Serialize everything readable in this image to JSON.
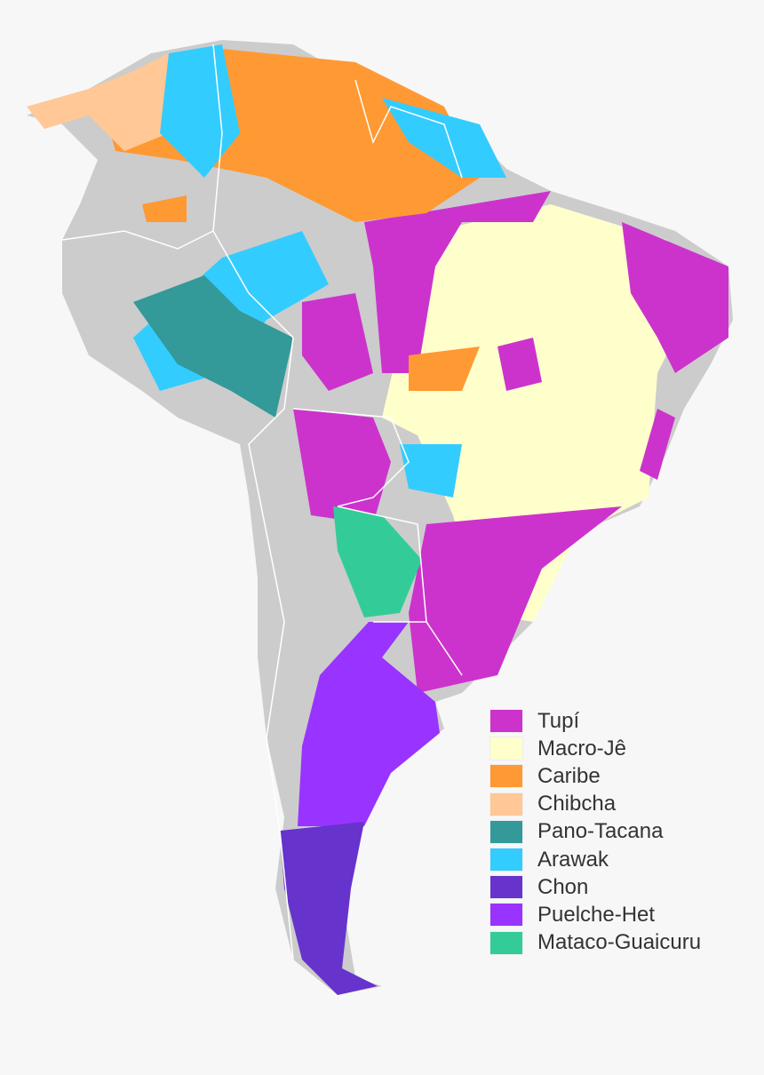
{
  "map": {
    "land_color": "#cccccc",
    "border_color": "#ffffff"
  },
  "legend": {
    "items": [
      {
        "label": "Tupí",
        "color": "#cc33cc"
      },
      {
        "label": "Macro-Jê",
        "color": "#ffffcc"
      },
      {
        "label": "Caribe",
        "color": "#ff9933"
      },
      {
        "label": "Chibcha",
        "color": "#ffc896"
      },
      {
        "label": "Pano-Tacana",
        "color": "#339999"
      },
      {
        "label": "Arawak",
        "color": "#33ccff"
      },
      {
        "label": "Chon",
        "color": "#6633cc"
      },
      {
        "label": "Puelche-Het",
        "color": "#9933ff"
      },
      {
        "label": "Mataco-Guaicuru",
        "color": "#33cc99"
      }
    ]
  }
}
